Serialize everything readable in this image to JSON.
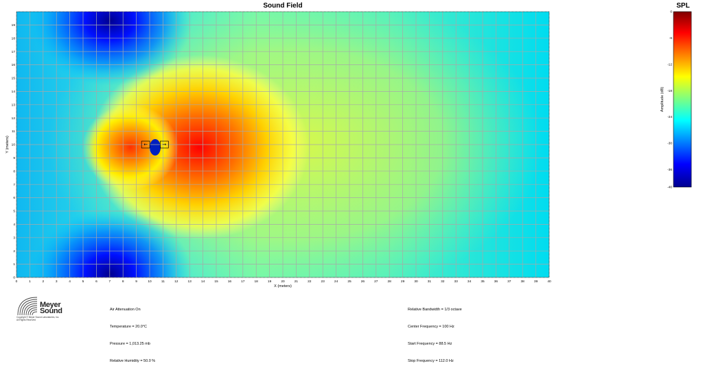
{
  "chart_data": [
    {
      "type": "heatmap",
      "title": "Sound Field",
      "xlabel": "X (meters)",
      "ylabel": "Y (meters)",
      "xlim": [
        0,
        40
      ],
      "ylim": [
        0,
        20
      ],
      "x_ticks": [
        0,
        1,
        2,
        3,
        4,
        5,
        6,
        7,
        8,
        9,
        10,
        11,
        12,
        13,
        14,
        15,
        16,
        17,
        18,
        19,
        20,
        21,
        22,
        23,
        24,
        25,
        26,
        27,
        28,
        29,
        30,
        31,
        32,
        33,
        34,
        35,
        36,
        37,
        38,
        39,
        40
      ],
      "y_ticks": [
        0,
        1,
        2,
        3,
        4,
        5,
        6,
        7,
        8,
        9,
        10,
        11,
        12,
        13,
        14,
        15,
        16,
        17,
        18,
        19
      ],
      "grid": true,
      "sources": [
        {
          "label": "←",
          "x": 9.7,
          "y": 10.0
        },
        {
          "label": "→",
          "x": 11.1,
          "y": 10.0
        }
      ],
      "field_summary": {
        "peak_x": 11.8,
        "peak_y": 10.0,
        "peak_level": -2,
        "low_lobes": [
          {
            "x": 8.5,
            "y": 20
          },
          {
            "x": 8.5,
            "y": 0
          },
          {
            "x": 10.35,
            "y": 10.0
          }
        ],
        "far_level": -20
      }
    },
    {
      "type": "colorbar",
      "title": "SPL",
      "ylabel": "Amplitude (dB)",
      "ticks": [
        0,
        -6,
        -12,
        -18,
        -24,
        -30,
        -36,
        -40
      ],
      "range": [
        -40,
        0
      ],
      "colormap": [
        "#00008f",
        "#0000ff",
        "#00ffff",
        "#ffff00",
        "#ff0000",
        "#800000"
      ]
    }
  ],
  "info_left": {
    "lines": [
      "Air Attenuation On",
      "Temperature = 20.0°C",
      "Pressure = 1,013.25 mb",
      "Relative Humidity = 50.0 %"
    ]
  },
  "info_right": {
    "lines": [
      "Relative Bandwidth = 1/3 octave",
      "Center Frequency = 100 Hz",
      "Start Frequency = 88.5 Hz",
      "Stop Frequency = 112.0 Hz"
    ]
  },
  "logo": {
    "name_line1": "Meyer",
    "name_line2": "Sound",
    "copyright": "Copyright © Meyer Sound Laboratories, Inc.\nAll Rights Reserved"
  },
  "colors": {
    "grid": "#a8a8a8",
    "background": "#ffffff"
  }
}
